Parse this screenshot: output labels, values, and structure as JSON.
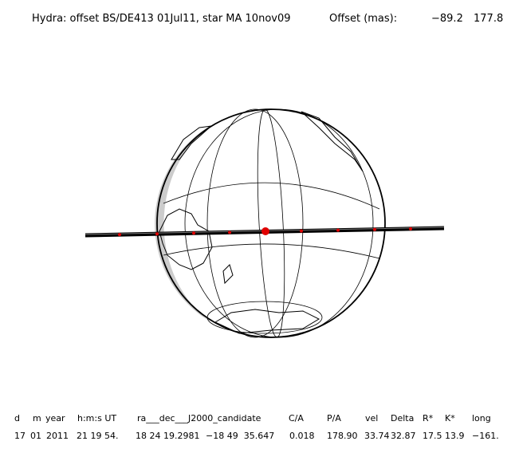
{
  "header": {
    "title": "Hydra: offset BS/DE413 01Jul11, star MA 10nov09",
    "offset_label": "Offset (mas):",
    "offset_values": [
      "−89.2",
      "177.8"
    ]
  },
  "table": {
    "columns": [
      "d",
      "m",
      "year",
      "h:m:s UT",
      "ra___dec___J2000_candidate",
      "C/A",
      "P/A",
      "vel",
      "Delta",
      "R*",
      "K*",
      "long"
    ],
    "row": [
      "17",
      "01",
      "2011",
      "21 19 54.",
      "18 24 19.2981",
      "−18 49  35.647",
      "0.018",
      "178.90",
      "33.74",
      "32.87",
      "17.5",
      "13.9",
      "−161."
    ]
  }
}
